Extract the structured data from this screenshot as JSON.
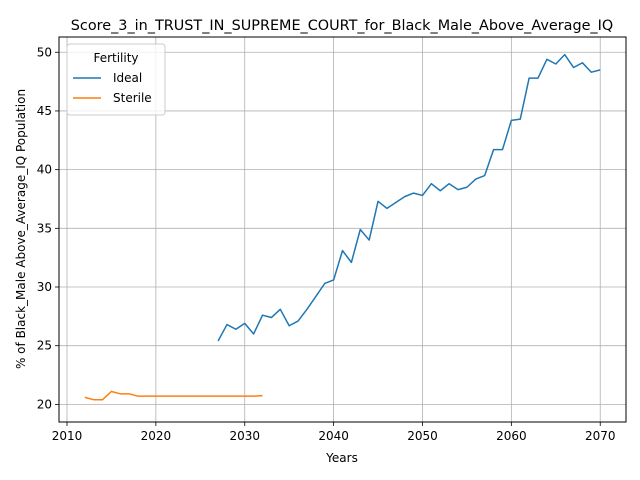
{
  "chart_data": {
    "type": "line",
    "title": "Score_3_in_TRUST_IN_SUPREME_COURT_for_Black_Male_Above_Average_IQ",
    "xlabel": "Years",
    "ylabel": "% of Black_Male Above_Average_IQ Population",
    "xlim": [
      2009.1,
      2072.9
    ],
    "ylim": [
      18.5,
      51.3
    ],
    "xticks": [
      2010,
      2020,
      2030,
      2040,
      2050,
      2060,
      2070
    ],
    "yticks": [
      20,
      25,
      30,
      35,
      40,
      45,
      50
    ],
    "grid": true,
    "legend": {
      "title": "Fertility",
      "position": "top-left"
    },
    "series": [
      {
        "name": "Ideal",
        "color": "#1f77b4",
        "x": [
          2027,
          2028,
          2029,
          2030,
          2031,
          2032,
          2033,
          2034,
          2035,
          2036,
          2037,
          2038,
          2039,
          2040,
          2041,
          2042,
          2043,
          2044,
          2045,
          2046,
          2047,
          2048,
          2049,
          2050,
          2051,
          2052,
          2053,
          2054,
          2055,
          2056,
          2057,
          2058,
          2059,
          2060,
          2061,
          2062,
          2063,
          2064,
          2065,
          2066,
          2067,
          2068,
          2069,
          2070
        ],
        "y": [
          25.4,
          26.8,
          26.4,
          26.9,
          26.0,
          27.6,
          27.4,
          28.1,
          26.7,
          27.1,
          28.1,
          29.2,
          30.3,
          30.6,
          33.1,
          32.1,
          34.9,
          34.0,
          37.3,
          36.7,
          37.2,
          37.7,
          38.0,
          37.8,
          38.8,
          38.2,
          38.8,
          38.3,
          38.5,
          39.2,
          39.5,
          41.7,
          41.7,
          44.2,
          44.3,
          47.8,
          47.8,
          49.4,
          49.0,
          49.8,
          48.7,
          49.1,
          48.3,
          48.5
        ]
      },
      {
        "name": "Sterile",
        "color": "#ff7f0e",
        "x": [
          2012,
          2013,
          2014,
          2015,
          2016,
          2017,
          2018,
          2019,
          2020,
          2021,
          2022,
          2023,
          2024,
          2025,
          2026,
          2027,
          2028,
          2029,
          2030,
          2031,
          2032
        ],
        "y": [
          20.6,
          20.4,
          20.4,
          21.1,
          20.9,
          20.9,
          20.7,
          20.7,
          20.7,
          20.7,
          20.7,
          20.7,
          20.7,
          20.7,
          20.7,
          20.7,
          20.7,
          20.7,
          20.7,
          20.7,
          20.75
        ]
      }
    ]
  }
}
